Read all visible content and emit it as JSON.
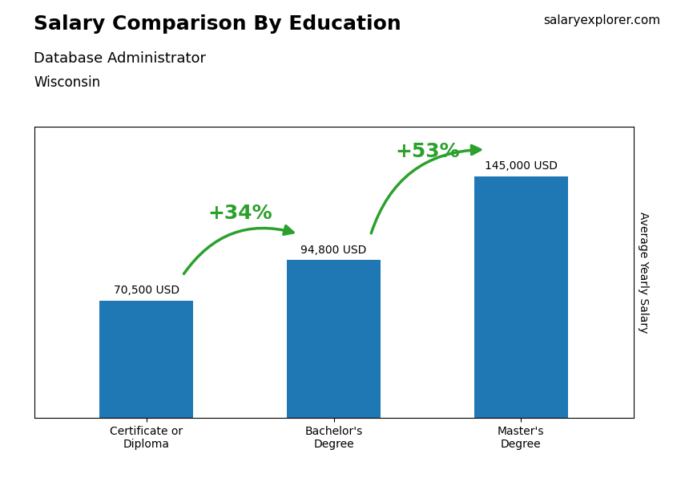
{
  "chart_data": {
    "type": "bar",
    "title": "Salary Comparison By Education",
    "subtitle": "Database Administrator",
    "location": "Wisconsin",
    "source": "salaryexplorer.com",
    "categories": [
      "Certificate or\nDiploma",
      "Bachelor's\nDegree",
      "Master's\nDegree"
    ],
    "values": [
      70500,
      94800,
      145000
    ],
    "value_labels": [
      "70,500 USD",
      "94,800 USD",
      "145,000 USD"
    ],
    "data_labels": true,
    "annotations": [
      "+34%",
      "+53%"
    ],
    "ylabel": "Average Yearly Salary",
    "ylim": [
      0,
      175000
    ],
    "yticks": [],
    "tick_labels": "x",
    "grid": false
  }
}
